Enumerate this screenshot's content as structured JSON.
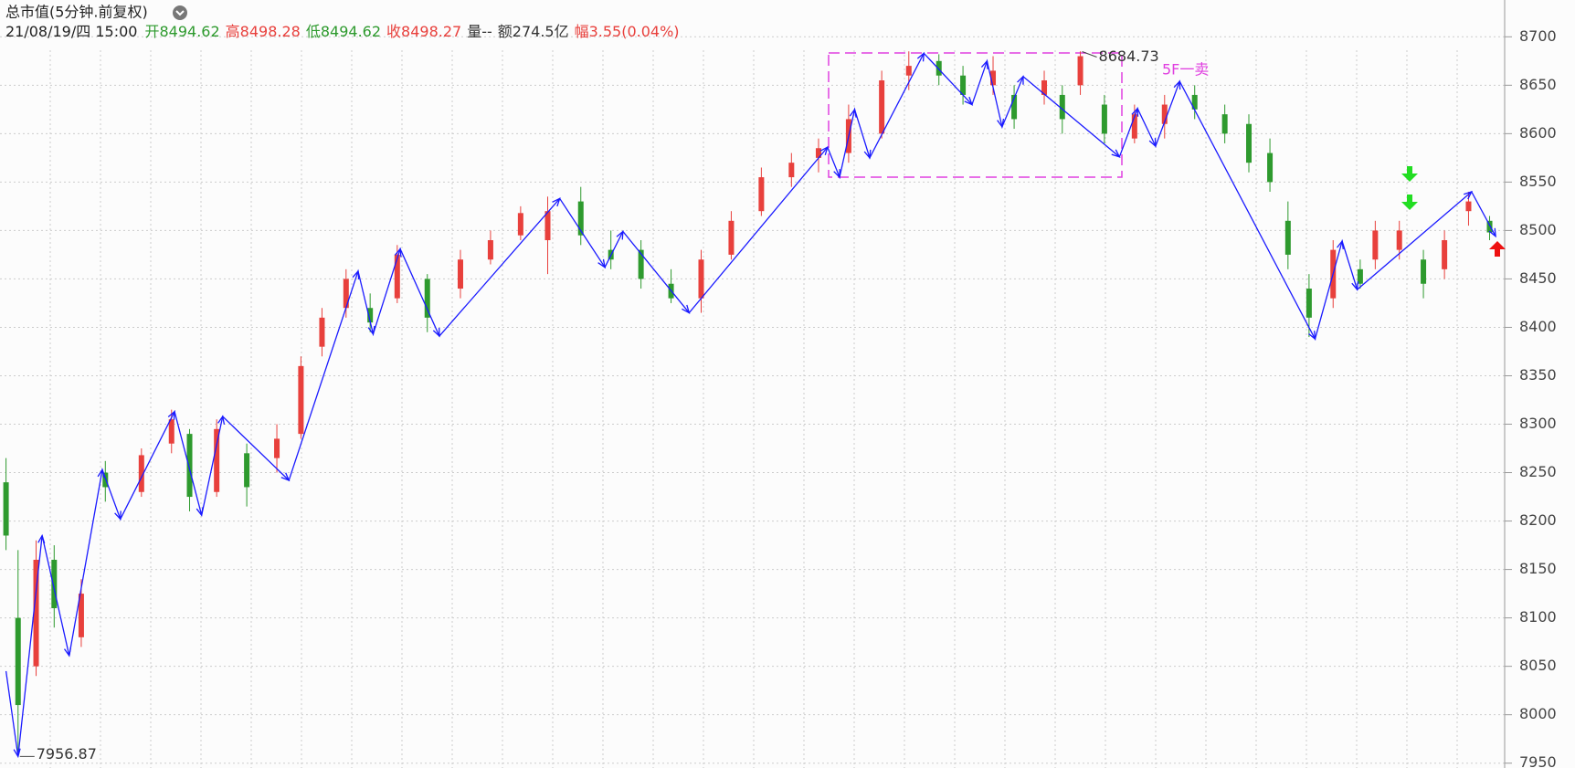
{
  "header": {
    "title": "总市值(5分钟.前复权)",
    "date": "21/08/19/四 15:00",
    "fields": [
      {
        "label": "开",
        "value": "8494.62",
        "color": "#2e9a2e"
      },
      {
        "label": "高",
        "value": "8498.28",
        "color": "#e8403c"
      },
      {
        "label": "低",
        "value": "8494.62",
        "color": "#2e9a2e"
      },
      {
        "label": "收",
        "value": "8498.27",
        "color": "#e8403c"
      },
      {
        "label": "量",
        "value": "--",
        "color": "#333333"
      },
      {
        "label": "额",
        "value": "274.5亿",
        "color": "#333333"
      },
      {
        "label": "幅",
        "value": "3.55(0.04%)",
        "color": "#e8403c"
      }
    ]
  },
  "chart_data": {
    "type": "candlestick",
    "up_color": "#e8403c",
    "down_color": "#2e9a2e",
    "xlim": [
      0,
      500
    ],
    "ylim": [
      7945,
      8738
    ],
    "yticks": [
      7950,
      8000,
      8050,
      8100,
      8150,
      8200,
      8250,
      8300,
      8350,
      8400,
      8450,
      8500,
      8550,
      8600,
      8650,
      8700
    ],
    "grid": true,
    "candles": {
      "x": [
        2,
        6,
        12,
        18,
        27,
        35,
        47,
        57,
        63,
        72,
        82,
        92,
        100,
        107,
        115,
        123,
        132,
        142,
        153,
        163,
        173,
        182,
        193,
        203,
        213,
        223,
        233,
        243,
        253,
        263,
        272,
        282,
        293,
        302,
        312,
        320,
        330,
        337,
        347,
        353,
        359,
        367,
        377,
        387,
        397,
        407,
        415,
        422,
        428,
        435,
        443,
        452,
        457,
        465,
        473,
        480,
        488,
        495
      ],
      "open": [
        8240,
        8100,
        8050,
        8160,
        8080,
        8250,
        8230,
        8280,
        8290,
        8230,
        8270,
        8265,
        8290,
        8380,
        8420,
        8420,
        8430,
        8450,
        8440,
        8470,
        8495,
        8490,
        8530,
        8480,
        8480,
        8445,
        8430,
        8475,
        8520,
        8555,
        8575,
        8580,
        8600,
        8660,
        8675,
        8660,
        8650,
        8640,
        8640,
        8640,
        8650,
        8630,
        8595,
        8610,
        8640,
        8620,
        8610,
        8580,
        8510,
        8440,
        8430,
        8460,
        8470,
        8480,
        8470,
        8460,
        8520,
        8510
      ],
      "high": [
        8265,
        8170,
        8180,
        8175,
        8140,
        8262,
        8275,
        8315,
        8295,
        8305,
        8280,
        8300,
        8370,
        8420,
        8460,
        8435,
        8485,
        8455,
        8480,
        8500,
        8525,
        8535,
        8545,
        8500,
        8490,
        8460,
        8480,
        8520,
        8565,
        8580,
        8595,
        8630,
        8665,
        8685,
        8682,
        8670,
        8680,
        8650,
        8665,
        8650,
        8685,
        8640,
        8630,
        8640,
        8650,
        8630,
        8620,
        8595,
        8530,
        8455,
        8490,
        8470,
        8510,
        8510,
        8480,
        8500,
        8540,
        8515
      ],
      "low": [
        8170,
        7957,
        8040,
        8090,
        8070,
        8220,
        8225,
        8270,
        8210,
        8225,
        8215,
        8250,
        8285,
        8370,
        8410,
        8395,
        8425,
        8395,
        8430,
        8465,
        8490,
        8455,
        8485,
        8460,
        8440,
        8425,
        8415,
        8470,
        8515,
        8545,
        8560,
        8570,
        8595,
        8645,
        8650,
        8630,
        8640,
        8605,
        8630,
        8600,
        8640,
        8590,
        8590,
        8595,
        8615,
        8590,
        8560,
        8540,
        8460,
        8390,
        8420,
        8440,
        8460,
        8470,
        8430,
        8450,
        8505,
        8490
      ],
      "close": [
        8185,
        8010,
        8160,
        8110,
        8125,
        8235,
        8268,
        8305,
        8225,
        8295,
        8235,
        8285,
        8360,
        8410,
        8450,
        8405,
        8475,
        8410,
        8470,
        8490,
        8518,
        8520,
        8495,
        8470,
        8450,
        8430,
        8470,
        8510,
        8555,
        8570,
        8585,
        8615,
        8655,
        8670,
        8660,
        8640,
        8665,
        8615,
        8655,
        8615,
        8680,
        8600,
        8620,
        8630,
        8625,
        8600,
        8570,
        8550,
        8475,
        8410,
        8480,
        8445,
        8500,
        8500,
        8445,
        8490,
        8530,
        8498
      ]
    },
    "zigzag": {
      "name": "zigzag",
      "color": "#1a1aff",
      "x": [
        2,
        6,
        14,
        23,
        34,
        40,
        58,
        67,
        74,
        96,
        119,
        124,
        133,
        146,
        186,
        201,
        207,
        229,
        275,
        279,
        284,
        289,
        307,
        323,
        328,
        333,
        340,
        372,
        378,
        384,
        392,
        437,
        446,
        451,
        489,
        497
      ],
      "values": [
        8045,
        7956.87,
        8185,
        8061,
        8253,
        8202,
        8313,
        8206,
        8308,
        8242,
        8458,
        8393,
        8481,
        8391,
        8533,
        8462,
        8499,
        8415,
        8586,
        8555,
        8625,
        8575,
        8683,
        8630,
        8675,
        8607,
        8659,
        8576,
        8626,
        8587,
        8654,
        8388,
        8489,
        8439,
        8540,
        8494
      ]
    },
    "high_mark": {
      "x": 359,
      "value": "8684.73",
      "level": 8684.73
    },
    "low_mark": {
      "x": 6,
      "value": "7956.87",
      "level": 7956.87
    },
    "signal_text": "5F一卖"
  }
}
